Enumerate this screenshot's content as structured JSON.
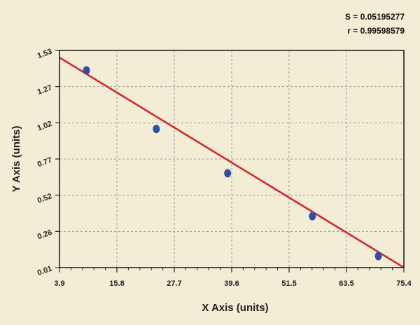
{
  "chart_data": {
    "type": "scatter",
    "xlabel": "X Axis (units)",
    "ylabel": "Y Axis (units)",
    "xlim": [
      3.9,
      75.4
    ],
    "ylim": [
      0.01,
      1.53
    ],
    "x_ticks": [
      "3.9",
      "15.8",
      "27.7",
      "39.6",
      "51.5",
      "63.5",
      "75.4"
    ],
    "y_ticks": [
      "0.01",
      "0.26",
      "0.52",
      "0.77",
      "1.02",
      "1.27",
      "1.53"
    ],
    "grid": true,
    "stats": {
      "s_label": "S = 0.05195277",
      "r_label": "r = 0.99598579"
    },
    "points": [
      {
        "x": 9.5,
        "y": 1.39
      },
      {
        "x": 24.0,
        "y": 0.98
      },
      {
        "x": 38.8,
        "y": 0.67
      },
      {
        "x": 56.4,
        "y": 0.37
      },
      {
        "x": 70.1,
        "y": 0.09
      }
    ],
    "fit_line": {
      "x": [
        3.9,
        75.4
      ],
      "y": [
        1.48,
        0.01
      ]
    },
    "colors": {
      "points": "#2f4fa6",
      "fit_line": "#e01d1d",
      "plot_bg": "#f3edd5",
      "grid": "#9a9a9a"
    }
  }
}
